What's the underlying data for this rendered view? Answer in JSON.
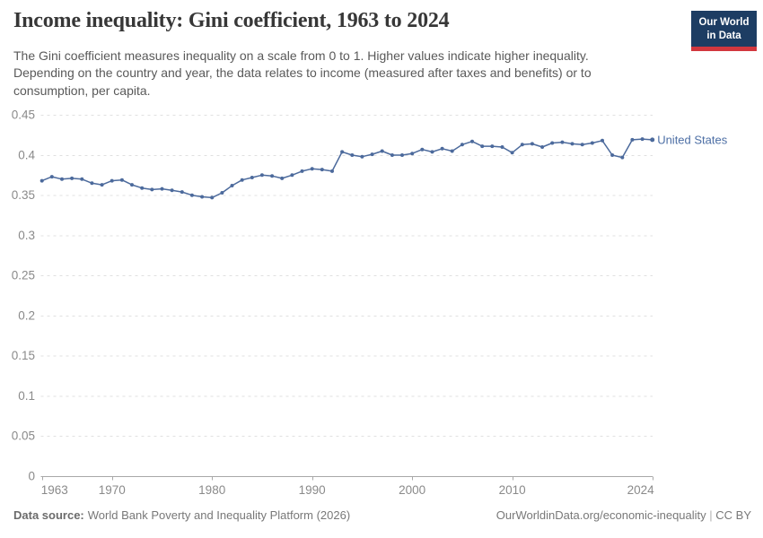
{
  "header": {
    "title": "Income inequality: Gini coefficient, 1963 to 2024",
    "subtitle": "The Gini coefficient measures inequality on a scale from 0 to 1. Higher values indicate higher inequality. Depending on the country and year, the data relates to income (measured after taxes and benefits) or to consumption, per capita.",
    "logo": {
      "line1": "Our World",
      "line2": "in Data"
    }
  },
  "footer": {
    "datasource_label": "Data source:",
    "datasource_value": "World Bank Poverty and Inequality Platform (2026)",
    "link": "OurWorldinData.org/economic-inequality",
    "separator": " | ",
    "license": "CC BY"
  },
  "colors": {
    "series": "#4c6a9c",
    "series_label": "#4d6fa5",
    "grid": "#e0e0e0",
    "axis": "#a8a8a8",
    "tick_text": "#8a8a8a",
    "logo_bg": "#1d3d63",
    "logo_stripe": "#d2373e"
  },
  "chart_data": {
    "type": "line",
    "title": "Income inequality: Gini coefficient, 1963 to 2024",
    "xlabel": "",
    "ylabel": "",
    "xlim": [
      1963,
      2024
    ],
    "ylim": [
      0,
      0.45
    ],
    "x_ticks": [
      1963,
      1970,
      1980,
      1990,
      2000,
      2010,
      2024
    ],
    "y_ticks": [
      0,
      0.05,
      0.1,
      0.15,
      0.2,
      0.25,
      0.3,
      0.35,
      0.4,
      0.45
    ],
    "y_tick_labels": [
      "0",
      "0.05",
      "0.1",
      "0.15",
      "0.2",
      "0.25",
      "0.3",
      "0.35",
      "0.4",
      "0.45"
    ],
    "grid": "horizontal-dashed",
    "legend_position": "end-of-line",
    "series": [
      {
        "name": "United States",
        "color": "#4c6a9c",
        "x": [
          1963,
          1964,
          1965,
          1966,
          1967,
          1968,
          1969,
          1970,
          1971,
          1972,
          1973,
          1974,
          1975,
          1976,
          1977,
          1978,
          1979,
          1980,
          1981,
          1982,
          1983,
          1984,
          1985,
          1986,
          1987,
          1988,
          1989,
          1990,
          1991,
          1992,
          1993,
          1994,
          1995,
          1996,
          1997,
          1998,
          1999,
          2000,
          2001,
          2002,
          2003,
          2004,
          2005,
          2006,
          2007,
          2008,
          2009,
          2010,
          2011,
          2012,
          2013,
          2014,
          2015,
          2016,
          2017,
          2018,
          2019,
          2020,
          2021,
          2022,
          2023,
          2024
        ],
        "y": [
          0.368,
          0.373,
          0.37,
          0.371,
          0.37,
          0.365,
          0.363,
          0.368,
          0.369,
          0.363,
          0.359,
          0.357,
          0.358,
          0.356,
          0.354,
          0.35,
          0.348,
          0.347,
          0.353,
          0.362,
          0.369,
          0.372,
          0.375,
          0.374,
          0.371,
          0.375,
          0.38,
          0.383,
          0.382,
          0.38,
          0.404,
          0.4,
          0.398,
          0.401,
          0.405,
          0.4,
          0.4,
          0.402,
          0.407,
          0.404,
          0.408,
          0.405,
          0.413,
          0.417,
          0.411,
          0.411,
          0.41,
          0.403,
          0.413,
          0.414,
          0.41,
          0.415,
          0.416,
          0.414,
          0.413,
          0.415,
          0.418,
          0.4,
          0.397,
          0.419,
          0.42,
          0.419
        ]
      }
    ]
  }
}
